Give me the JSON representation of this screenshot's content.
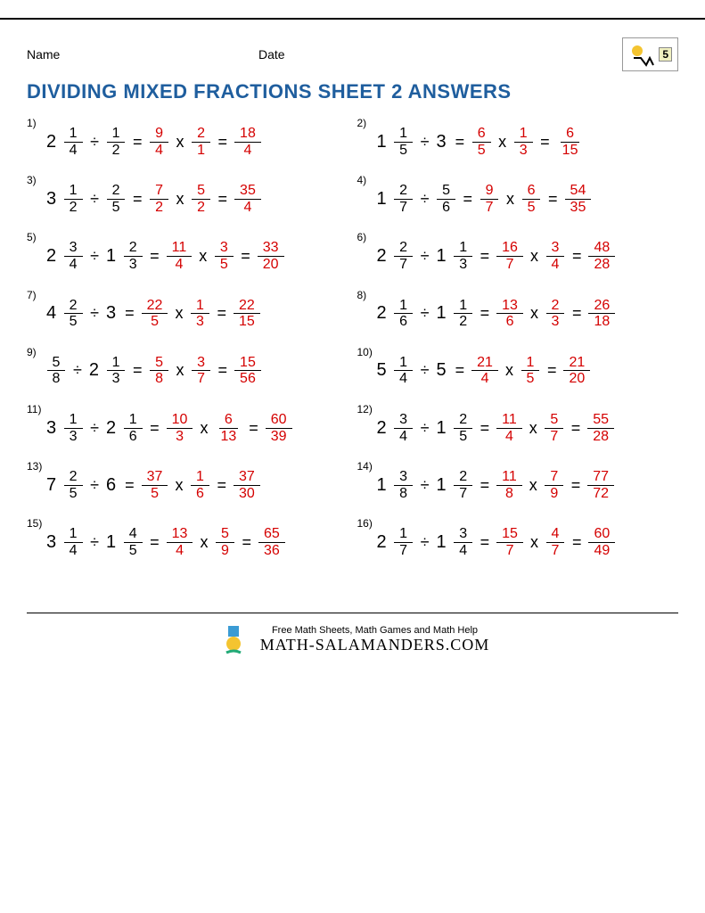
{
  "header": {
    "name_label": "Name",
    "date_label": "Date",
    "grade": "5"
  },
  "title": "DIVIDING MIXED FRACTIONS SHEET 2 ANSWERS",
  "colors": {
    "title": "#1f5e9e",
    "answer": "#d40000",
    "text": "#000000"
  },
  "problems": [
    {
      "num": "1)",
      "a": {
        "w": "2",
        "n": "1",
        "d": "4"
      },
      "b": {
        "n": "1",
        "d": "2"
      },
      "s1": {
        "n": "9",
        "d": "4"
      },
      "s2": {
        "n": "2",
        "d": "1"
      },
      "r": {
        "n": "18",
        "d": "4"
      }
    },
    {
      "num": "2)",
      "a": {
        "w": "1",
        "n": "1",
        "d": "5"
      },
      "b": {
        "w": "3"
      },
      "s1": {
        "n": "6",
        "d": "5"
      },
      "s2": {
        "n": "1",
        "d": "3"
      },
      "r": {
        "n": "6",
        "d": "15"
      }
    },
    {
      "num": "3)",
      "a": {
        "w": "3",
        "n": "1",
        "d": "2"
      },
      "b": {
        "n": "2",
        "d": "5"
      },
      "s1": {
        "n": "7",
        "d": "2"
      },
      "s2": {
        "n": "5",
        "d": "2"
      },
      "r": {
        "n": "35",
        "d": "4"
      }
    },
    {
      "num": "4)",
      "a": {
        "w": "1",
        "n": "2",
        "d": "7"
      },
      "b": {
        "n": "5",
        "d": "6"
      },
      "s1": {
        "n": "9",
        "d": "7"
      },
      "s2": {
        "n": "6",
        "d": "5"
      },
      "r": {
        "n": "54",
        "d": "35"
      }
    },
    {
      "num": "5)",
      "a": {
        "w": "2",
        "n": "3",
        "d": "4"
      },
      "b": {
        "w": "1",
        "n": "2",
        "d": "3"
      },
      "s1": {
        "n": "11",
        "d": "4"
      },
      "s2": {
        "n": "3",
        "d": "5"
      },
      "r": {
        "n": "33",
        "d": "20"
      }
    },
    {
      "num": "6)",
      "a": {
        "w": "2",
        "n": "2",
        "d": "7"
      },
      "b": {
        "w": "1",
        "n": "1",
        "d": "3"
      },
      "s1": {
        "n": "16",
        "d": "7"
      },
      "s2": {
        "n": "3",
        "d": "4"
      },
      "r": {
        "n": "48",
        "d": "28"
      }
    },
    {
      "num": "7)",
      "a": {
        "w": "4",
        "n": "2",
        "d": "5"
      },
      "b": {
        "w": "3"
      },
      "s1": {
        "n": "22",
        "d": "5"
      },
      "s2": {
        "n": "1",
        "d": "3"
      },
      "r": {
        "n": "22",
        "d": "15"
      }
    },
    {
      "num": "8)",
      "a": {
        "w": "2",
        "n": "1",
        "d": "6"
      },
      "b": {
        "w": "1",
        "n": "1",
        "d": "2"
      },
      "s1": {
        "n": "13",
        "d": "6"
      },
      "s2": {
        "n": "2",
        "d": "3"
      },
      "r": {
        "n": "26",
        "d": "18"
      }
    },
    {
      "num": "9)",
      "a": {
        "n": "5",
        "d": "8"
      },
      "b": {
        "w": "2",
        "n": "1",
        "d": "3"
      },
      "s1": {
        "n": "5",
        "d": "8"
      },
      "s2": {
        "n": "3",
        "d": "7"
      },
      "r": {
        "n": "15",
        "d": "56"
      }
    },
    {
      "num": "10)",
      "a": {
        "w": "5",
        "n": "1",
        "d": "4"
      },
      "b": {
        "w": "5"
      },
      "s1": {
        "n": "21",
        "d": "4"
      },
      "s2": {
        "n": "1",
        "d": "5"
      },
      "r": {
        "n": "21",
        "d": "20"
      }
    },
    {
      "num": "11)",
      "a": {
        "w": "3",
        "n": "1",
        "d": "3"
      },
      "b": {
        "w": "2",
        "n": "1",
        "d": "6"
      },
      "s1": {
        "n": "10",
        "d": "3"
      },
      "s2": {
        "n": "6",
        "d": "13"
      },
      "r": {
        "n": "60",
        "d": "39"
      }
    },
    {
      "num": "12)",
      "a": {
        "w": "2",
        "n": "3",
        "d": "4"
      },
      "b": {
        "w": "1",
        "n": "2",
        "d": "5"
      },
      "s1": {
        "n": "11",
        "d": "4"
      },
      "s2": {
        "n": "5",
        "d": "7"
      },
      "r": {
        "n": "55",
        "d": "28"
      }
    },
    {
      "num": "13)",
      "a": {
        "w": "7",
        "n": "2",
        "d": "5"
      },
      "b": {
        "w": "6"
      },
      "s1": {
        "n": "37",
        "d": "5"
      },
      "s2": {
        "n": "1",
        "d": "6"
      },
      "r": {
        "n": "37",
        "d": "30"
      }
    },
    {
      "num": "14)",
      "a": {
        "w": "1",
        "n": "3",
        "d": "8"
      },
      "b": {
        "w": "1",
        "n": "2",
        "d": "7"
      },
      "s1": {
        "n": "11",
        "d": "8"
      },
      "s2": {
        "n": "7",
        "d": "9"
      },
      "r": {
        "n": "77",
        "d": "72"
      }
    },
    {
      "num": "15)",
      "a": {
        "w": "3",
        "n": "1",
        "d": "4"
      },
      "b": {
        "w": "1",
        "n": "4",
        "d": "5"
      },
      "s1": {
        "n": "13",
        "d": "4"
      },
      "s2": {
        "n": "5",
        "d": "9"
      },
      "r": {
        "n": "65",
        "d": "36"
      }
    },
    {
      "num": "16)",
      "a": {
        "w": "2",
        "n": "1",
        "d": "7"
      },
      "b": {
        "w": "1",
        "n": "3",
        "d": "4"
      },
      "s1": {
        "n": "15",
        "d": "7"
      },
      "s2": {
        "n": "4",
        "d": "7"
      },
      "r": {
        "n": "60",
        "d": "49"
      }
    }
  ],
  "footer": {
    "tagline": "Free Math Sheets, Math Games and Math Help",
    "site": "MATH-SALAMANDERS.COM"
  }
}
